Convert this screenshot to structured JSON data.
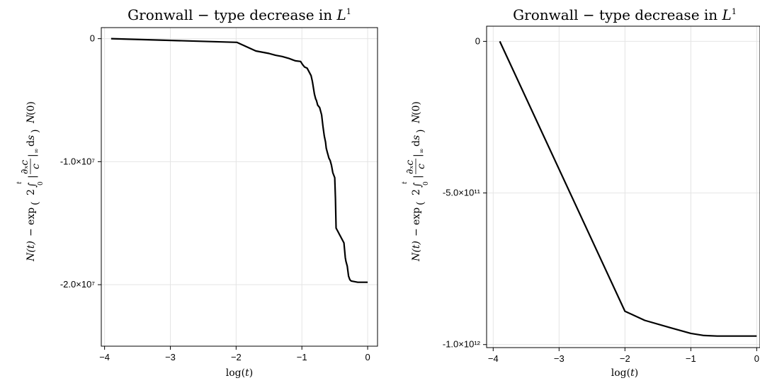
{
  "chart_data": [
    {
      "type": "line",
      "title": "Gronwall − type decrease in L¹",
      "xlabel": "log(t)",
      "ylabel": "N(t) − exp(2∫₀ᵗ‖∂ₓc / c‖∞ ds) N(0)",
      "xlim": [
        -4.05,
        0.15
      ],
      "ylim": [
        -25000000,
        900000
      ],
      "xticks": [
        -4,
        -3,
        -2,
        -1,
        0
      ],
      "xtick_labels": [
        "−4",
        "−3",
        "−2",
        "−1",
        "0"
      ],
      "yticks": [
        0,
        -10000000,
        -20000000
      ],
      "ytick_labels": [
        "0",
        "-1.0×10⁷",
        "-2.0×10⁷"
      ],
      "grid": true,
      "series": [
        {
          "color": "#000000",
          "x": [
            -3.9,
            -1.99,
            -1.7,
            -1.5,
            -1.4,
            -1.3,
            -1.2,
            -1.15,
            -1.1,
            -1.02,
            -0.99,
            -0.96,
            -0.92,
            -0.9,
            -0.86,
            -0.84,
            -0.81,
            -0.79,
            -0.78,
            -0.77,
            -0.76,
            -0.73,
            -0.7,
            -0.68,
            -0.66,
            -0.64,
            -0.63,
            -0.61,
            -0.6,
            -0.59,
            -0.57,
            -0.55,
            -0.53,
            -0.5,
            -0.49,
            -0.48,
            -0.47,
            -0.45,
            -0.43,
            -0.4,
            -0.36,
            -0.34,
            -0.33,
            -0.31,
            -0.29,
            -0.27,
            -0.25,
            -0.2,
            -0.15,
            -0.1,
            0
          ],
          "values": [
            0,
            -300000,
            -1000000,
            -1200000,
            -1350000,
            -1450000,
            -1600000,
            -1700000,
            -1800000,
            -1850000,
            -2100000,
            -2300000,
            -2400000,
            -2600000,
            -3000000,
            -3500000,
            -4500000,
            -4900000,
            -5000000,
            -5200000,
            -5400000,
            -5600000,
            -6200000,
            -7100000,
            -7900000,
            -8400000,
            -8900000,
            -9300000,
            -9500000,
            -9700000,
            -9900000,
            -10300000,
            -10900000,
            -11300000,
            -13000000,
            -15400000,
            -15500000,
            -15700000,
            -15900000,
            -16200000,
            -16600000,
            -17800000,
            -18100000,
            -18500000,
            -19300000,
            -19600000,
            -19700000,
            -19750000,
            -19800000,
            -19800000,
            -19800000
          ]
        }
      ]
    },
    {
      "type": "line",
      "title": "Gronwall − type decrease in L¹",
      "xlabel": "log(t)",
      "ylabel": "N(t) − exp(2∫₀ᵗ‖∂ₓc / c‖∞ ds) N(0)",
      "xlim": [
        -4.1,
        0.05
      ],
      "ylim": [
        -1010000000000,
        50000000000
      ],
      "xticks": [
        -4,
        -3,
        -2,
        -1,
        0
      ],
      "xtick_labels": [
        "−4",
        "−3",
        "−2",
        "−1",
        "0"
      ],
      "yticks": [
        0,
        -500000000000,
        -1000000000000
      ],
      "ytick_labels": [
        "0",
        "-5.0×10¹¹",
        "-1.0×10¹²"
      ],
      "grid": true,
      "series": [
        {
          "color": "#000000",
          "x": [
            -3.9,
            -2.0,
            -1.7,
            -1.3,
            -1.0,
            -0.8,
            -0.6,
            -0.4,
            -0.2,
            0
          ],
          "values": [
            0,
            -890000000000,
            -920000000000,
            -945000000000,
            -963000000000,
            -970000000000,
            -972000000000,
            -972000000000,
            -972000000000,
            -972000000000
          ]
        }
      ]
    }
  ]
}
